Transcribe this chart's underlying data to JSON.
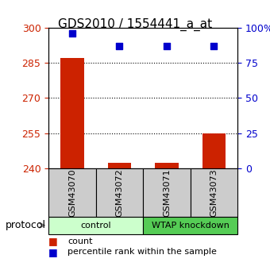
{
  "title": "GDS2010 / 1554441_a_at",
  "samples": [
    "GSM43070",
    "GSM43072",
    "GSM43071",
    "GSM43073"
  ],
  "groups": [
    {
      "label": "control",
      "color": "#ccffcc",
      "start": 0,
      "end": 2
    },
    {
      "label": "WTAP knockdown",
      "color": "#55cc55",
      "start": 2,
      "end": 4
    }
  ],
  "count_values": [
    287.0,
    242.5,
    242.5,
    255.0
  ],
  "percentile_values": [
    96,
    87,
    87,
    87
  ],
  "ylim_left": [
    240,
    300
  ],
  "ylim_right": [
    0,
    100
  ],
  "yticks_left": [
    240,
    255,
    270,
    285,
    300
  ],
  "yticks_right": [
    0,
    25,
    50,
    75,
    100
  ],
  "ytick_labels_right": [
    "0",
    "25",
    "50",
    "75",
    "100%"
  ],
  "bar_color": "#cc2200",
  "dot_color": "#0000cc",
  "bg_color": "#ffffff",
  "sample_box_color": "#cccccc",
  "left_axis_color": "#cc2200",
  "right_axis_color": "#0000cc",
  "protocol_label": "protocol",
  "legend_count_label": "count",
  "legend_pct_label": "percentile rank within the sample",
  "title_fontsize": 11,
  "tick_fontsize": 9,
  "label_fontsize": 9
}
